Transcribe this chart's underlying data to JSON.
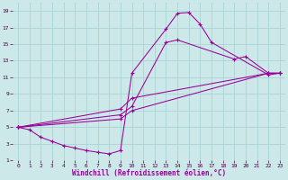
{
  "xlabel": "Windchill (Refroidissement éolien,°C)",
  "bg_color": "#cce8e8",
  "grid_color": "#aad4d4",
  "line_color": "#990099",
  "marker": "+",
  "xlim": [
    -0.5,
    23.5
  ],
  "ylim": [
    1,
    20
  ],
  "xticks": [
    0,
    1,
    2,
    3,
    4,
    5,
    6,
    7,
    8,
    9,
    10,
    11,
    12,
    13,
    14,
    15,
    16,
    17,
    18,
    19,
    20,
    21,
    22,
    23
  ],
  "yticks": [
    1,
    3,
    5,
    7,
    9,
    11,
    13,
    15,
    17,
    19
  ],
  "series1_x": [
    0,
    1,
    2,
    3,
    4,
    5,
    6,
    7,
    8,
    9,
    10,
    13,
    14,
    15,
    16,
    17,
    22,
    23
  ],
  "series1_y": [
    5,
    4.7,
    3.8,
    3.3,
    2.8,
    2.5,
    2.2,
    2.0,
    1.8,
    2.2,
    11.5,
    16.8,
    18.7,
    18.8,
    17.4,
    15.2,
    11.3,
    11.5
  ],
  "series2_x": [
    0,
    9,
    10,
    13,
    14,
    19,
    20,
    22,
    23
  ],
  "series2_y": [
    5,
    6.5,
    7.5,
    15.2,
    15.5,
    13.2,
    13.5,
    11.5,
    11.5
  ],
  "series3_x": [
    0,
    9,
    10,
    22,
    23
  ],
  "series3_y": [
    5,
    6.0,
    7.0,
    11.5,
    11.5
  ],
  "series4_x": [
    0,
    9,
    10,
    22,
    23
  ],
  "series4_y": [
    5,
    7.2,
    8.5,
    11.5,
    11.5
  ]
}
